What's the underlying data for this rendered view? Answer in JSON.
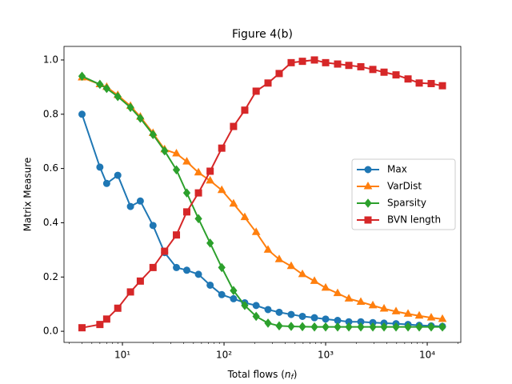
{
  "chart_data": {
    "type": "line",
    "title": "Figure 4(b)",
    "xlabel": [
      "Total flows (",
      "n",
      "f",
      ")"
    ],
    "ylabel": "Matrix Measure",
    "xscale": "log",
    "x": [
      4,
      6,
      7,
      9,
      12,
      15,
      20,
      26,
      34,
      43,
      56,
      73,
      95,
      124,
      160,
      207,
      271,
      349,
      458,
      591,
      776,
      1000,
      1312,
      1692,
      2220,
      2915,
      3757,
      4930,
      6473,
      8340,
      10940,
      14110
    ],
    "series": [
      {
        "name": "Max",
        "color": "#1f77b4",
        "marker": "o",
        "values": [
          0.8,
          0.605,
          0.545,
          0.575,
          0.46,
          0.48,
          0.39,
          0.29,
          0.235,
          0.225,
          0.21,
          0.17,
          0.135,
          0.12,
          0.105,
          0.095,
          0.08,
          0.07,
          0.062,
          0.055,
          0.05,
          0.045,
          0.04,
          0.035,
          0.035,
          0.032,
          0.03,
          0.028,
          0.025,
          0.022,
          0.02,
          0.018
        ]
      },
      {
        "name": "VarDist",
        "color": "#ff7f0e",
        "marker": "^",
        "values": [
          0.935,
          0.91,
          0.9,
          0.87,
          0.83,
          0.79,
          0.73,
          0.67,
          0.655,
          0.625,
          0.585,
          0.555,
          0.52,
          0.47,
          0.42,
          0.365,
          0.3,
          0.265,
          0.24,
          0.21,
          0.185,
          0.16,
          0.14,
          0.12,
          0.108,
          0.095,
          0.083,
          0.073,
          0.064,
          0.057,
          0.05,
          0.045
        ]
      },
      {
        "name": "Sparsity",
        "color": "#2ca02c",
        "marker": "D",
        "values": [
          0.94,
          0.91,
          0.895,
          0.865,
          0.825,
          0.785,
          0.725,
          0.665,
          0.595,
          0.51,
          0.415,
          0.325,
          0.235,
          0.15,
          0.095,
          0.055,
          0.03,
          0.02,
          0.018,
          0.017,
          0.016,
          0.016,
          0.016,
          0.016,
          0.016,
          0.016,
          0.016,
          0.016,
          0.016,
          0.016,
          0.016,
          0.016
        ]
      },
      {
        "name": "BVN length",
        "color": "#d62728",
        "marker": "s",
        "values": [
          0.013,
          0.025,
          0.045,
          0.085,
          0.145,
          0.185,
          0.235,
          0.295,
          0.355,
          0.44,
          0.51,
          0.59,
          0.675,
          0.755,
          0.815,
          0.885,
          0.915,
          0.95,
          0.99,
          0.995,
          1.0,
          0.99,
          0.985,
          0.98,
          0.975,
          0.965,
          0.955,
          0.945,
          0.93,
          0.915,
          0.913,
          0.905
        ]
      }
    ],
    "xlim": [
      2.66,
      21400
    ],
    "ylim": [
      -0.041,
      1.05
    ],
    "xticks": [
      {
        "value": 10,
        "label": "10¹"
      },
      {
        "value": 100,
        "label": "10²"
      },
      {
        "value": 1000,
        "label": "10³"
      },
      {
        "value": 10000,
        "label": "10⁴"
      }
    ],
    "xminorticks": [
      3,
      4,
      5,
      6,
      7,
      8,
      9,
      20,
      30,
      40,
      50,
      60,
      70,
      80,
      90,
      200,
      300,
      400,
      500,
      600,
      700,
      800,
      900,
      2000,
      3000,
      4000,
      5000,
      6000,
      7000,
      8000,
      9000,
      20000
    ],
    "yticks": [
      {
        "value": 0,
        "label": "0.0"
      },
      0.2,
      0.4,
      0.6,
      0.8,
      {
        "value": 1,
        "label": "1.0"
      }
    ],
    "legend": "center right"
  }
}
